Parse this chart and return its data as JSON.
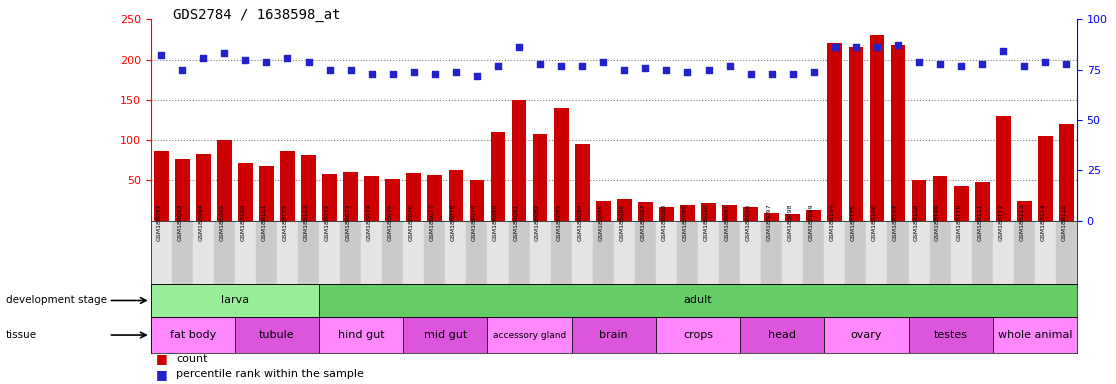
{
  "title": "GDS2784 / 1638598_at",
  "samples": [
    "GSM188092",
    "GSM188093",
    "GSM188094",
    "GSM188095",
    "GSM188100",
    "GSM188101",
    "GSM188102",
    "GSM188103",
    "GSM188072",
    "GSM188073",
    "GSM188074",
    "GSM188075",
    "GSM188076",
    "GSM188077",
    "GSM188078",
    "GSM188079",
    "GSM188080",
    "GSM188081",
    "GSM188082",
    "GSM188083",
    "GSM188084",
    "GSM188085",
    "GSM188086",
    "GSM188087",
    "GSM188088",
    "GSM188089",
    "GSM188090",
    "GSM188091",
    "GSM188096",
    "GSM188097",
    "GSM188098",
    "GSM188099",
    "GSM188104",
    "GSM188105",
    "GSM188106",
    "GSM188107",
    "GSM188108",
    "GSM188109",
    "GSM188110",
    "GSM188111",
    "GSM188112",
    "GSM188113",
    "GSM188114",
    "GSM188115"
  ],
  "counts": [
    87,
    77,
    83,
    100,
    72,
    68,
    86,
    82,
    58,
    61,
    56,
    52,
    59,
    57,
    63,
    50,
    110,
    150,
    108,
    140,
    95,
    25,
    27,
    23,
    17,
    20,
    22,
    20,
    17,
    10,
    8,
    13,
    220,
    215,
    230,
    218,
    50,
    55,
    43,
    48,
    130,
    25,
    105,
    120
  ],
  "percentiles_pct": [
    82,
    75,
    81,
    83,
    80,
    79,
    81,
    79,
    75,
    75,
    73,
    73,
    74,
    73,
    74,
    72,
    77,
    86,
    78,
    77,
    77,
    79,
    75,
    76,
    75,
    74,
    75,
    77,
    73,
    73,
    73,
    74,
    86,
    86,
    86,
    87,
    79,
    78,
    77,
    78,
    84,
    77,
    79,
    78
  ],
  "development_stages": [
    {
      "label": "larva",
      "start": 0,
      "end": 8
    },
    {
      "label": "adult",
      "start": 8,
      "end": 44
    }
  ],
  "dev_stage_colors": [
    "#99EE99",
    "#66CC66"
  ],
  "tissues": [
    {
      "label": "fat body",
      "start": 0,
      "end": 4
    },
    {
      "label": "tubule",
      "start": 4,
      "end": 8
    },
    {
      "label": "hind gut",
      "start": 8,
      "end": 12
    },
    {
      "label": "mid gut",
      "start": 12,
      "end": 16
    },
    {
      "label": "accessory gland",
      "start": 16,
      "end": 20
    },
    {
      "label": "brain",
      "start": 20,
      "end": 24
    },
    {
      "label": "crops",
      "start": 24,
      "end": 28
    },
    {
      "label": "head",
      "start": 28,
      "end": 32
    },
    {
      "label": "ovary",
      "start": 32,
      "end": 36
    },
    {
      "label": "testes",
      "start": 36,
      "end": 40
    },
    {
      "label": "whole animal",
      "start": 40,
      "end": 44
    }
  ],
  "tissue_colors": [
    "#FF88FF",
    "#DD55DD",
    "#FF88FF",
    "#DD55DD",
    "#FF88FF",
    "#DD55DD",
    "#FF88FF",
    "#DD55DD",
    "#FF88FF",
    "#DD55DD",
    "#FF88FF"
  ],
  "bar_color": "#CC0000",
  "dot_color": "#2222CC",
  "left_ylim": [
    0,
    250
  ],
  "right_ylim": [
    0,
    100
  ],
  "left_yticks": [
    50,
    100,
    150,
    200,
    250
  ],
  "right_yticks": [
    0,
    25,
    50,
    75,
    100
  ],
  "grid_values": [
    50,
    100,
    150,
    200
  ]
}
